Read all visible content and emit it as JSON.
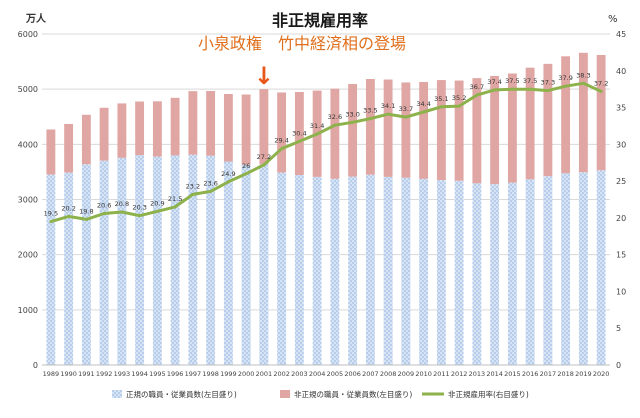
{
  "chart_data": {
    "type": "bar+line",
    "title": "非正規雇用率",
    "subtitle": "小泉政権　竹中経済相の登場",
    "ylabel_left": "万人",
    "ylabel_right": "%",
    "ylim_left": [
      0,
      6000
    ],
    "ylim_right": [
      0,
      45
    ],
    "yticks_left": [
      0,
      1000,
      2000,
      3000,
      4000,
      5000,
      6000
    ],
    "yticks_right": [
      0,
      5,
      10,
      15,
      20,
      25,
      30,
      35,
      40,
      45
    ],
    "categories": [
      "1989",
      "1990",
      "1991",
      "1992",
      "1993",
      "1994",
      "1995",
      "1996",
      "1997",
      "1998",
      "1999",
      "2000",
      "2001",
      "2002",
      "2003",
      "2004",
      "2005",
      "2006",
      "2007",
      "2008",
      "2009",
      "2010",
      "2011",
      "2012",
      "2013",
      "2014",
      "2015",
      "2016",
      "2017",
      "2018",
      "2019",
      "2020"
    ],
    "series": [
      {
        "name": "正規の職員・従業員数(左目盛り)",
        "kind": "bar",
        "color": "#a9c4e6",
        "values": [
          3452,
          3488,
          3639,
          3705,
          3756,
          3805,
          3779,
          3800,
          3812,
          3794,
          3688,
          3630,
          3640,
          3489,
          3444,
          3410,
          3375,
          3415,
          3449,
          3410,
          3395,
          3374,
          3352,
          3340,
          3294,
          3278,
          3304,
          3367,
          3423,
          3476,
          3494,
          3529
        ]
      },
      {
        "name": "非正規の職員・従業員数(左目盛り)",
        "kind": "bar-stack",
        "color": "#e0a6a3",
        "values": [
          817,
          881,
          897,
          958,
          986,
          971,
          1001,
          1043,
          1152,
          1173,
          1225,
          1273,
          1360,
          1451,
          1504,
          1564,
          1634,
          1678,
          1735,
          1765,
          1727,
          1756,
          1813,
          1816,
          1906,
          1962,
          1980,
          2023,
          2036,
          2120,
          2165,
          2090
        ]
      },
      {
        "name": "非正規雇用率(右目盛り)",
        "kind": "line",
        "color": "#8db24b",
        "values": [
          19.5,
          20.2,
          19.8,
          20.6,
          20.8,
          20.3,
          20.9,
          21.5,
          23.2,
          23.6,
          24.9,
          26,
          27.2,
          29.4,
          30.4,
          31.4,
          32.6,
          33,
          33.5,
          34.1,
          33.7,
          34.4,
          35.1,
          35.2,
          36.7,
          37.4,
          37.5,
          37.5,
          37.3,
          37.9,
          38.3,
          37.2
        ],
        "labels": [
          "19.5",
          "20.2",
          "19.8",
          "20.6",
          "20.8",
          "20.3",
          "20.9",
          "21.5",
          "23.2",
          "23.6",
          "24.9",
          "26",
          "27.2",
          "29.4",
          "30.4",
          "31.4",
          "32.6",
          "33.0",
          "33.5",
          "34.1",
          "33.7",
          "34.4",
          "35.1",
          "35.2",
          "36.7",
          "37.4",
          "37.5",
          "37.5",
          "37.3",
          "37.9",
          "38.3",
          "37.2"
        ]
      }
    ],
    "annotation": {
      "text": "↓",
      "category": "2001",
      "color": "#e8571a"
    },
    "colors": {
      "title": "#1a1a1a",
      "subtitle": "#e0701e",
      "arrow": "#e8571a",
      "grid": "#d9d9d9",
      "axis_text": "#444444"
    }
  }
}
